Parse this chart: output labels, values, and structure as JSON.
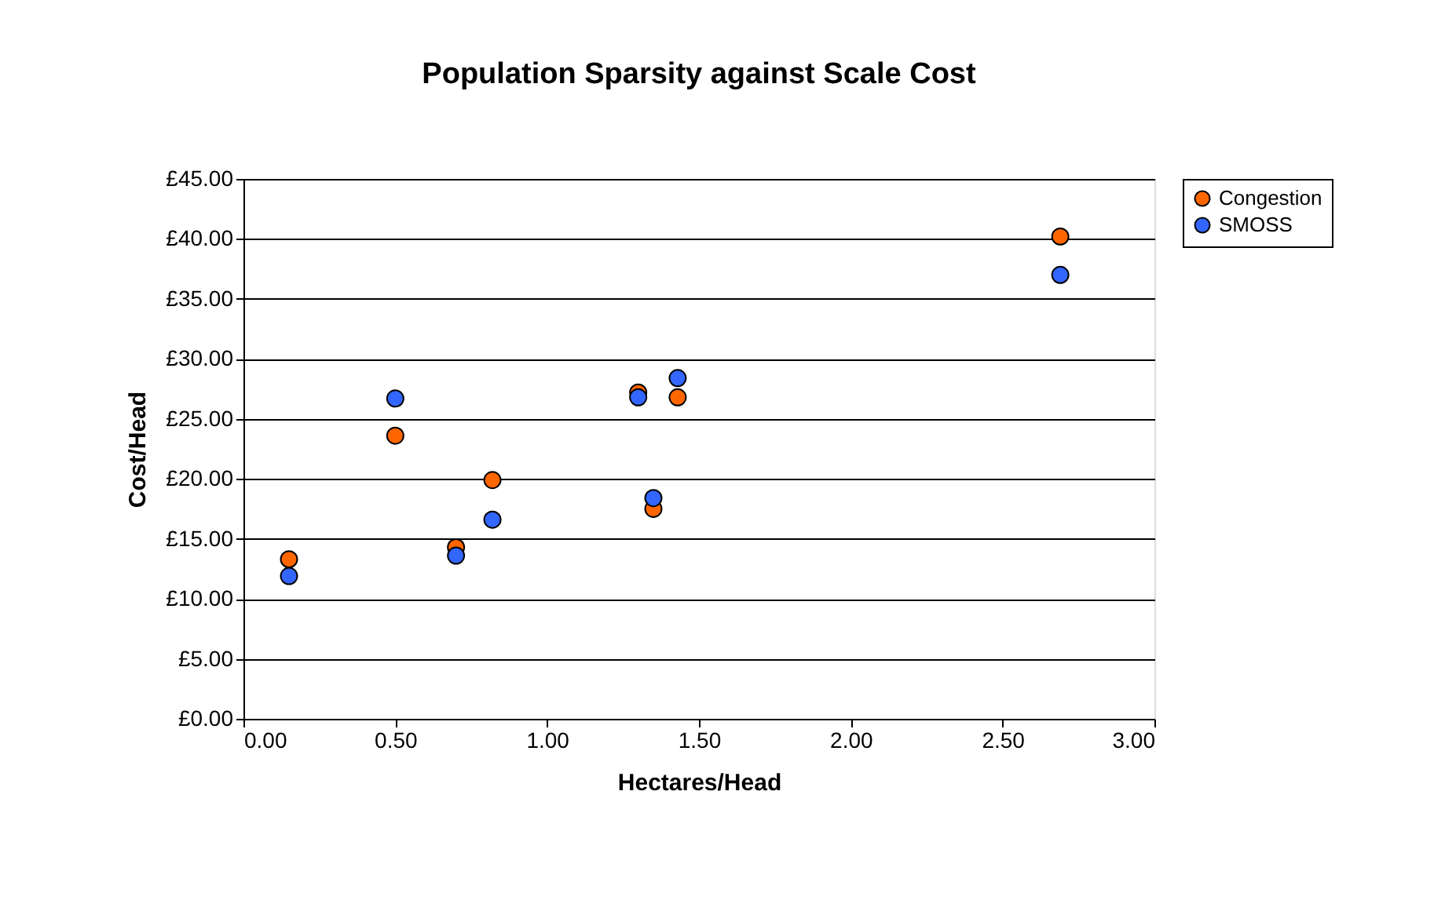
{
  "chart_data": {
    "type": "scatter",
    "title": "Population Sparsity against Scale Cost",
    "xlabel": "Hectares/Head",
    "ylabel": "Cost/Head",
    "series": [
      {
        "name": "Congestion",
        "color": "#ff6600",
        "x": [
          0.15,
          0.5,
          0.7,
          0.82,
          1.3,
          1.35,
          1.43,
          2.69
        ],
        "values": [
          13.3,
          23.6,
          14.3,
          19.9,
          27.2,
          17.5,
          26.8,
          40.2
        ]
      },
      {
        "name": "SMOSS",
        "color": "#3366ff",
        "x": [
          0.15,
          0.5,
          0.7,
          0.82,
          1.3,
          1.35,
          1.43,
          2.69
        ],
        "values": [
          11.9,
          26.7,
          13.6,
          16.6,
          26.8,
          18.4,
          28.4,
          37.0
        ]
      }
    ],
    "xlim": [
      0,
      3
    ],
    "ylim": [
      0,
      45
    ],
    "xticks": [
      {
        "value": 0,
        "label": "0.00"
      },
      {
        "value": 0.5,
        "label": "0.50"
      },
      {
        "value": 1,
        "label": "1.00"
      },
      {
        "value": 1.5,
        "label": "1.50"
      },
      {
        "value": 2,
        "label": "2.00"
      },
      {
        "value": 2.5,
        "label": "2.50"
      },
      {
        "value": 3,
        "label": "3.00"
      }
    ],
    "yticks": [
      {
        "value": 0,
        "label": "£0.00"
      },
      {
        "value": 5,
        "label": "£5.00"
      },
      {
        "value": 10,
        "label": "£10.00"
      },
      {
        "value": 15,
        "label": "£15.00"
      },
      {
        "value": 20,
        "label": "£20.00"
      },
      {
        "value": 25,
        "label": "£25.00"
      },
      {
        "value": 30,
        "label": "£30.00"
      },
      {
        "value": 35,
        "label": "£35.00"
      },
      {
        "value": 40,
        "label": "£40.00"
      },
      {
        "value": 45,
        "label": "£45.00"
      }
    ],
    "grid": "y",
    "legend": "right",
    "marker": "circle"
  }
}
